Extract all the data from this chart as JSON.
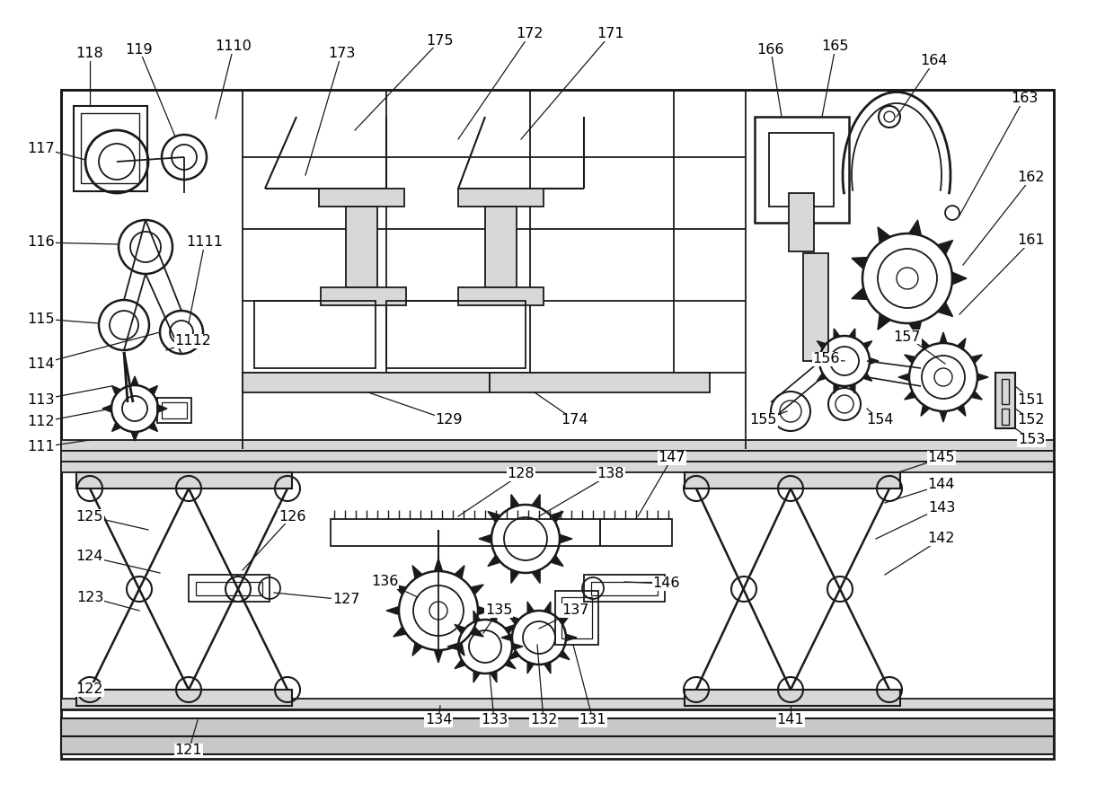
{
  "background_color": "#ffffff",
  "line_color": "#1a1a1a",
  "label_color": "#000000",
  "label_fontsize": 11.5,
  "fig_width": 12.4,
  "fig_height": 8.92,
  "gray_fill": "#c8c8c8",
  "mid_gray": "#b0b0b0",
  "light_gray": "#d8d8d8"
}
